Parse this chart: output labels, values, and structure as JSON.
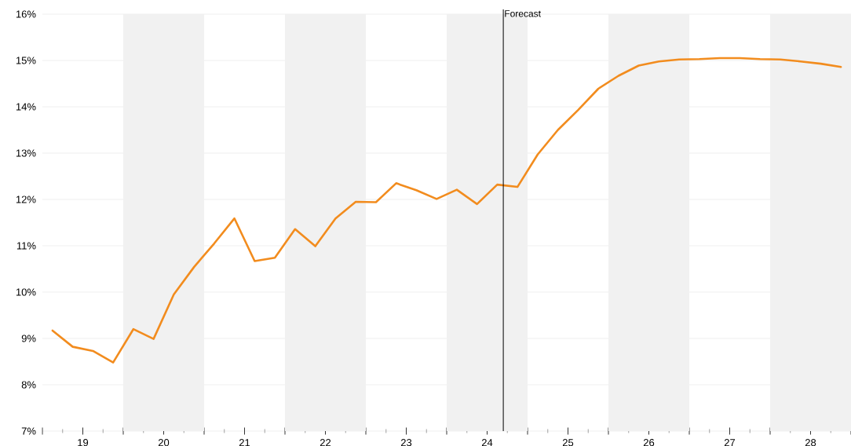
{
  "chart_data": {
    "type": "line",
    "x": [
      18.625,
      18.875,
      19.125,
      19.375,
      19.625,
      19.875,
      20.125,
      20.375,
      20.625,
      20.875,
      21.125,
      21.375,
      21.625,
      21.875,
      22.125,
      22.375,
      22.625,
      22.875,
      23.125,
      23.375,
      23.625,
      23.875,
      24.125,
      24.375,
      24.625,
      24.875,
      25.125,
      25.375,
      25.625,
      25.875,
      26.125,
      26.375,
      26.625,
      26.875,
      27.125,
      27.375,
      27.625,
      27.875,
      28.125,
      28.375
    ],
    "series": [
      {
        "color": "#f28c1e",
        "values": [
          9.17,
          8.82,
          8.73,
          8.48,
          9.2,
          8.99,
          9.95,
          10.54,
          11.05,
          11.59,
          10.67,
          10.74,
          11.36,
          10.99,
          11.59,
          11.95,
          11.94,
          12.35,
          12.2,
          12.01,
          12.21,
          11.9,
          12.32,
          12.27,
          12.97,
          13.5,
          13.93,
          14.39,
          14.67,
          14.89,
          14.98,
          15.02,
          15.03,
          15.05,
          15.05,
          15.03,
          15.02,
          14.98,
          14.93,
          14.86
        ]
      }
    ],
    "xlim": [
      18.5,
      28.5
    ],
    "xticks": [
      {
        "value": 18.5,
        "label": null
      },
      19,
      {
        "value": 19.5,
        "label": null
      },
      20,
      {
        "value": 20.5,
        "label": null
      },
      21,
      {
        "value": 21.5,
        "label": null
      },
      22,
      {
        "value": 22.5,
        "label": null
      },
      23,
      {
        "value": 23.5,
        "label": null
      },
      24,
      {
        "value": 24.5,
        "label": null
      },
      25,
      {
        "value": 25.5,
        "label": null
      },
      26,
      {
        "value": 26.5,
        "label": null
      },
      27,
      {
        "value": 27.5,
        "label": null
      },
      28,
      {
        "value": 28.5,
        "label": null
      }
    ],
    "ylim": [
      7,
      16
    ],
    "yticks": [
      {
        "value": 7,
        "label": "7%"
      },
      {
        "value": 8,
        "label": "8%"
      },
      {
        "value": 9,
        "label": "9%"
      },
      {
        "value": 10,
        "label": "10%"
      },
      {
        "value": 11,
        "label": "11%"
      },
      {
        "value": 12,
        "label": "12%"
      },
      {
        "value": 13,
        "label": "13%"
      },
      {
        "value": 14,
        "label": "14%"
      },
      {
        "value": 15,
        "label": "15%"
      },
      {
        "value": 16,
        "label": "16%"
      }
    ],
    "grid": "y",
    "bands": [
      {
        "axis": "x",
        "from": 19.5,
        "to": 20.5,
        "color": "#f1f1f1"
      },
      {
        "axis": "x",
        "from": 21.5,
        "to": 22.5,
        "color": "#f1f1f1"
      },
      {
        "axis": "x",
        "from": 23.5,
        "to": 24.5,
        "color": "#f1f1f1"
      },
      {
        "axis": "x",
        "from": 25.5,
        "to": 26.5,
        "color": "#f1f1f1"
      },
      {
        "axis": "x",
        "from": 27.5,
        "to": 28.5,
        "color": "#f1f1f1"
      }
    ],
    "ref_lines": [
      {
        "axis": "x",
        "value": 24.2,
        "label": "Forecast"
      }
    ]
  }
}
